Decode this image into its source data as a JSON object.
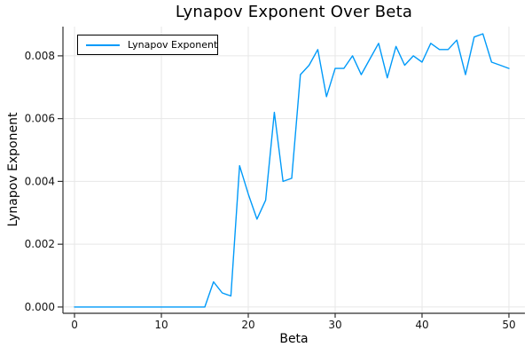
{
  "chart_data": {
    "type": "line",
    "title": "Lynapov Exponent Over Beta",
    "xlabel": "Beta",
    "ylabel": "Lynapov Exponent",
    "legend": {
      "position": "top-left",
      "entries": [
        "Lynapov Exponent"
      ]
    },
    "grid": true,
    "xlim": [
      -1.33,
      51.84
    ],
    "ylim": [
      -0.0002,
      0.00893
    ],
    "xticks": {
      "values": [
        0,
        10,
        20,
        30,
        40,
        50
      ],
      "labels": [
        "0",
        "10",
        "20",
        "30",
        "40",
        "50"
      ]
    },
    "yticks": {
      "values": [
        0,
        0.002,
        0.004,
        0.006,
        0.008
      ],
      "labels": [
        "0.000",
        "0.002",
        "0.004",
        "0.006",
        "0.008"
      ]
    },
    "colors": {
      "line": "#009af9",
      "grid": "#e7e7e7",
      "axis": "#2f2f2f",
      "text": "#151515",
      "legend_border": "#000000",
      "legend_bg": "#ffffff"
    },
    "series": [
      {
        "name": "Lynapov Exponent",
        "color": "#009af9",
        "x": [
          0,
          1,
          2,
          3,
          4,
          5,
          6,
          7,
          8,
          9,
          10,
          11,
          12,
          13,
          14,
          15,
          16,
          17,
          18,
          19,
          20,
          21,
          22,
          23,
          24,
          25,
          26,
          27,
          28,
          29,
          30,
          31,
          32,
          33,
          34,
          35,
          36,
          37,
          38,
          39,
          40,
          41,
          42,
          43,
          44,
          45,
          46,
          47,
          48,
          49,
          50
        ],
        "y": [
          0,
          0,
          0,
          0,
          0,
          0,
          0,
          0,
          0,
          0,
          0,
          0,
          0,
          0,
          0,
          0,
          0.0008,
          0.00045,
          0.00035,
          0.0045,
          0.0036,
          0.0028,
          0.0034,
          0.0062,
          0.004,
          0.0041,
          0.0074,
          0.0077,
          0.0082,
          0.0067,
          0.0076,
          0.0076,
          0.008,
          0.0074,
          0.0079,
          0.0084,
          0.0073,
          0.0083,
          0.0077,
          0.008,
          0.0078,
          0.0084,
          0.0082,
          0.0082,
          0.0085,
          0.0074,
          0.0086,
          0.0087,
          0.0078,
          0.0077,
          0.0076
        ]
      }
    ]
  }
}
